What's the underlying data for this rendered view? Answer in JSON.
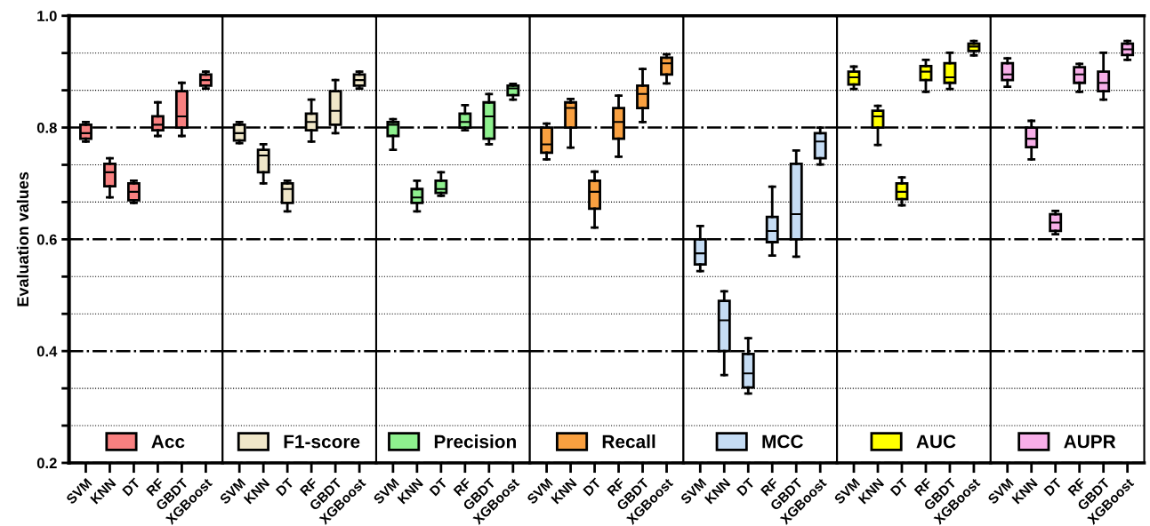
{
  "chart_data": [
    {
      "type": "box",
      "ylabel": "Evaluation values",
      "categories": [
        "SVM",
        "KNN",
        "DT",
        "RF",
        "GBDT",
        "XGBoost"
      ],
      "ylim": [
        0.2,
        1.0
      ],
      "yticks": [
        0.2,
        {
          "value": 0.2667,
          "label": null
        },
        {
          "value": 0.3333,
          "label": null
        },
        0.4,
        {
          "value": 0.4667,
          "label": null
        },
        {
          "value": 0.5333,
          "label": null
        },
        0.6,
        {
          "value": 0.6667,
          "label": null
        },
        {
          "value": 0.7333,
          "label": null
        },
        0.8,
        {
          "value": 0.8667,
          "label": null
        },
        {
          "value": 0.9333,
          "label": null
        },
        {
          "value": 1.0,
          "label": "1.0"
        }
      ],
      "grid": "y",
      "legend": "bottom",
      "series": [
        {
          "name": "Acc",
          "color": "#f88080",
          "boxes": [
            {
              "low": 0.775,
              "q1": 0.78,
              "median": 0.79,
              "q3": 0.805,
              "high": 0.81
            },
            {
              "low": 0.675,
              "q1": 0.695,
              "median": 0.72,
              "q3": 0.735,
              "high": 0.745
            },
            {
              "low": 0.665,
              "q1": 0.67,
              "median": 0.685,
              "q3": 0.7,
              "high": 0.705
            },
            {
              "low": 0.785,
              "q1": 0.795,
              "median": 0.805,
              "q3": 0.82,
              "high": 0.845
            },
            {
              "low": 0.785,
              "q1": 0.8,
              "median": 0.82,
              "q3": 0.865,
              "high": 0.88
            },
            {
              "low": 0.87,
              "q1": 0.875,
              "median": 0.885,
              "q3": 0.895,
              "high": 0.9
            }
          ]
        }
      ]
    },
    {
      "type": "box",
      "categories": [
        "SVM",
        "KNN",
        "DT",
        "RF",
        "GBDT",
        "XGBoost"
      ],
      "ylim": [
        0.2,
        1.0
      ],
      "grid": "y",
      "legend": "bottom",
      "tick_labels": "x",
      "series": [
        {
          "name": "F1-score",
          "color": "#efe6c8",
          "boxes": [
            {
              "low": 0.772,
              "q1": 0.777,
              "median": 0.79,
              "q3": 0.805,
              "high": 0.81
            },
            {
              "low": 0.7,
              "q1": 0.72,
              "median": 0.75,
              "q3": 0.76,
              "high": 0.77
            },
            {
              "low": 0.65,
              "q1": 0.665,
              "median": 0.69,
              "q3": 0.7,
              "high": 0.705
            },
            {
              "low": 0.775,
              "q1": 0.795,
              "median": 0.81,
              "q3": 0.825,
              "high": 0.85
            },
            {
              "low": 0.79,
              "q1": 0.805,
              "median": 0.83,
              "q3": 0.865,
              "high": 0.885
            },
            {
              "low": 0.87,
              "q1": 0.875,
              "median": 0.885,
              "q3": 0.895,
              "high": 0.9
            }
          ]
        }
      ]
    },
    {
      "type": "box",
      "categories": [
        "SVM",
        "KNN",
        "DT",
        "RF",
        "GBDT",
        "XGBoost"
      ],
      "ylim": [
        0.2,
        1.0
      ],
      "grid": "y",
      "legend": "bottom",
      "tick_labels": "x",
      "series": [
        {
          "name": "Precision",
          "color": "#8ef08e",
          "boxes": [
            {
              "low": 0.76,
              "q1": 0.785,
              "median": 0.805,
              "q3": 0.81,
              "high": 0.815
            },
            {
              "low": 0.65,
              "q1": 0.665,
              "median": 0.675,
              "q3": 0.69,
              "high": 0.705
            },
            {
              "low": 0.678,
              "q1": 0.683,
              "median": 0.69,
              "q3": 0.705,
              "high": 0.72
            },
            {
              "low": 0.795,
              "q1": 0.8,
              "median": 0.81,
              "q3": 0.825,
              "high": 0.84
            },
            {
              "low": 0.77,
              "q1": 0.78,
              "median": 0.82,
              "q3": 0.845,
              "high": 0.86
            },
            {
              "low": 0.85,
              "q1": 0.858,
              "median": 0.87,
              "q3": 0.875,
              "high": 0.878
            }
          ]
        }
      ]
    },
    {
      "type": "box",
      "categories": [
        "SVM",
        "KNN",
        "DT",
        "RF",
        "GBDT",
        "XGBoost"
      ],
      "ylim": [
        0.2,
        1.0
      ],
      "grid": "y",
      "legend": "bottom",
      "tick_labels": "x",
      "series": [
        {
          "name": "Recall",
          "color": "#f9a040",
          "boxes": [
            {
              "low": 0.743,
              "q1": 0.755,
              "median": 0.77,
              "q3": 0.8,
              "high": 0.807
            },
            {
              "low": 0.764,
              "q1": 0.8,
              "median": 0.835,
              "q3": 0.845,
              "high": 0.851
            },
            {
              "low": 0.621,
              "q1": 0.655,
              "median": 0.685,
              "q3": 0.705,
              "high": 0.721
            },
            {
              "low": 0.748,
              "q1": 0.78,
              "median": 0.81,
              "q3": 0.835,
              "high": 0.857
            },
            {
              "low": 0.81,
              "q1": 0.835,
              "median": 0.86,
              "q3": 0.875,
              "high": 0.905
            },
            {
              "low": 0.879,
              "q1": 0.895,
              "median": 0.915,
              "q3": 0.925,
              "high": 0.931
            }
          ]
        }
      ]
    },
    {
      "type": "box",
      "categories": [
        "SVM",
        "KNN",
        "DT",
        "RF",
        "GBDT",
        "XGBoost"
      ],
      "ylim": [
        0.2,
        1.0
      ],
      "grid": "y",
      "legend": "bottom",
      "tick_labels": "x",
      "series": [
        {
          "name": "MCC",
          "color": "#c5dcf4",
          "boxes": [
            {
              "low": 0.543,
              "q1": 0.555,
              "median": 0.575,
              "q3": 0.6,
              "high": 0.624
            },
            {
              "low": 0.357,
              "q1": 0.4,
              "median": 0.455,
              "q3": 0.49,
              "high": 0.507
            },
            {
              "low": 0.324,
              "q1": 0.335,
              "median": 0.36,
              "q3": 0.395,
              "high": 0.423
            },
            {
              "low": 0.571,
              "q1": 0.595,
              "median": 0.615,
              "q3": 0.64,
              "high": 0.694
            },
            {
              "low": 0.569,
              "q1": 0.6,
              "median": 0.645,
              "q3": 0.735,
              "high": 0.759
            },
            {
              "low": 0.734,
              "q1": 0.745,
              "median": 0.775,
              "q3": 0.79,
              "high": 0.8
            }
          ]
        }
      ]
    },
    {
      "type": "box",
      "categories": [
        "SVM",
        "KNN",
        "DT",
        "RF",
        "GBDT",
        "XGBoost"
      ],
      "ylim": [
        0.2,
        1.0
      ],
      "grid": "y",
      "legend": "bottom",
      "tick_labels": "x",
      "series": [
        {
          "name": "AUC",
          "color": "#ffff00",
          "boxes": [
            {
              "low": 0.869,
              "q1": 0.877,
              "median": 0.89,
              "q3": 0.9,
              "high": 0.909
            },
            {
              "low": 0.769,
              "q1": 0.8,
              "median": 0.82,
              "q3": 0.83,
              "high": 0.839
            },
            {
              "low": 0.661,
              "q1": 0.672,
              "median": 0.685,
              "q3": 0.7,
              "high": 0.711
            },
            {
              "low": 0.864,
              "q1": 0.885,
              "median": 0.9,
              "q3": 0.91,
              "high": 0.921
            },
            {
              "low": 0.869,
              "q1": 0.88,
              "median": 0.89,
              "q3": 0.915,
              "high": 0.934
            },
            {
              "low": 0.929,
              "q1": 0.937,
              "median": 0.945,
              "q3": 0.95,
              "high": 0.955
            }
          ]
        }
      ]
    },
    {
      "type": "box",
      "categories": [
        "SVM",
        "KNN",
        "DT",
        "RF",
        "GBDT",
        "XGBoost"
      ],
      "ylim": [
        0.2,
        1.0
      ],
      "grid": "y",
      "legend": "bottom",
      "tick_labels": "x",
      "series": [
        {
          "name": "AUPR",
          "color": "#f7aee8",
          "boxes": [
            {
              "low": 0.873,
              "q1": 0.885,
              "median": 0.895,
              "q3": 0.915,
              "high": 0.924
            },
            {
              "low": 0.743,
              "q1": 0.765,
              "median": 0.78,
              "q3": 0.8,
              "high": 0.812
            },
            {
              "low": 0.609,
              "q1": 0.615,
              "median": 0.63,
              "q3": 0.645,
              "high": 0.651
            },
            {
              "low": 0.864,
              "q1": 0.88,
              "median": 0.895,
              "q3": 0.908,
              "high": 0.914
            },
            {
              "low": 0.85,
              "q1": 0.865,
              "median": 0.88,
              "q3": 0.9,
              "high": 0.934
            },
            {
              "low": 0.921,
              "q1": 0.93,
              "median": 0.94,
              "q3": 0.95,
              "high": 0.955
            }
          ]
        }
      ]
    }
  ]
}
